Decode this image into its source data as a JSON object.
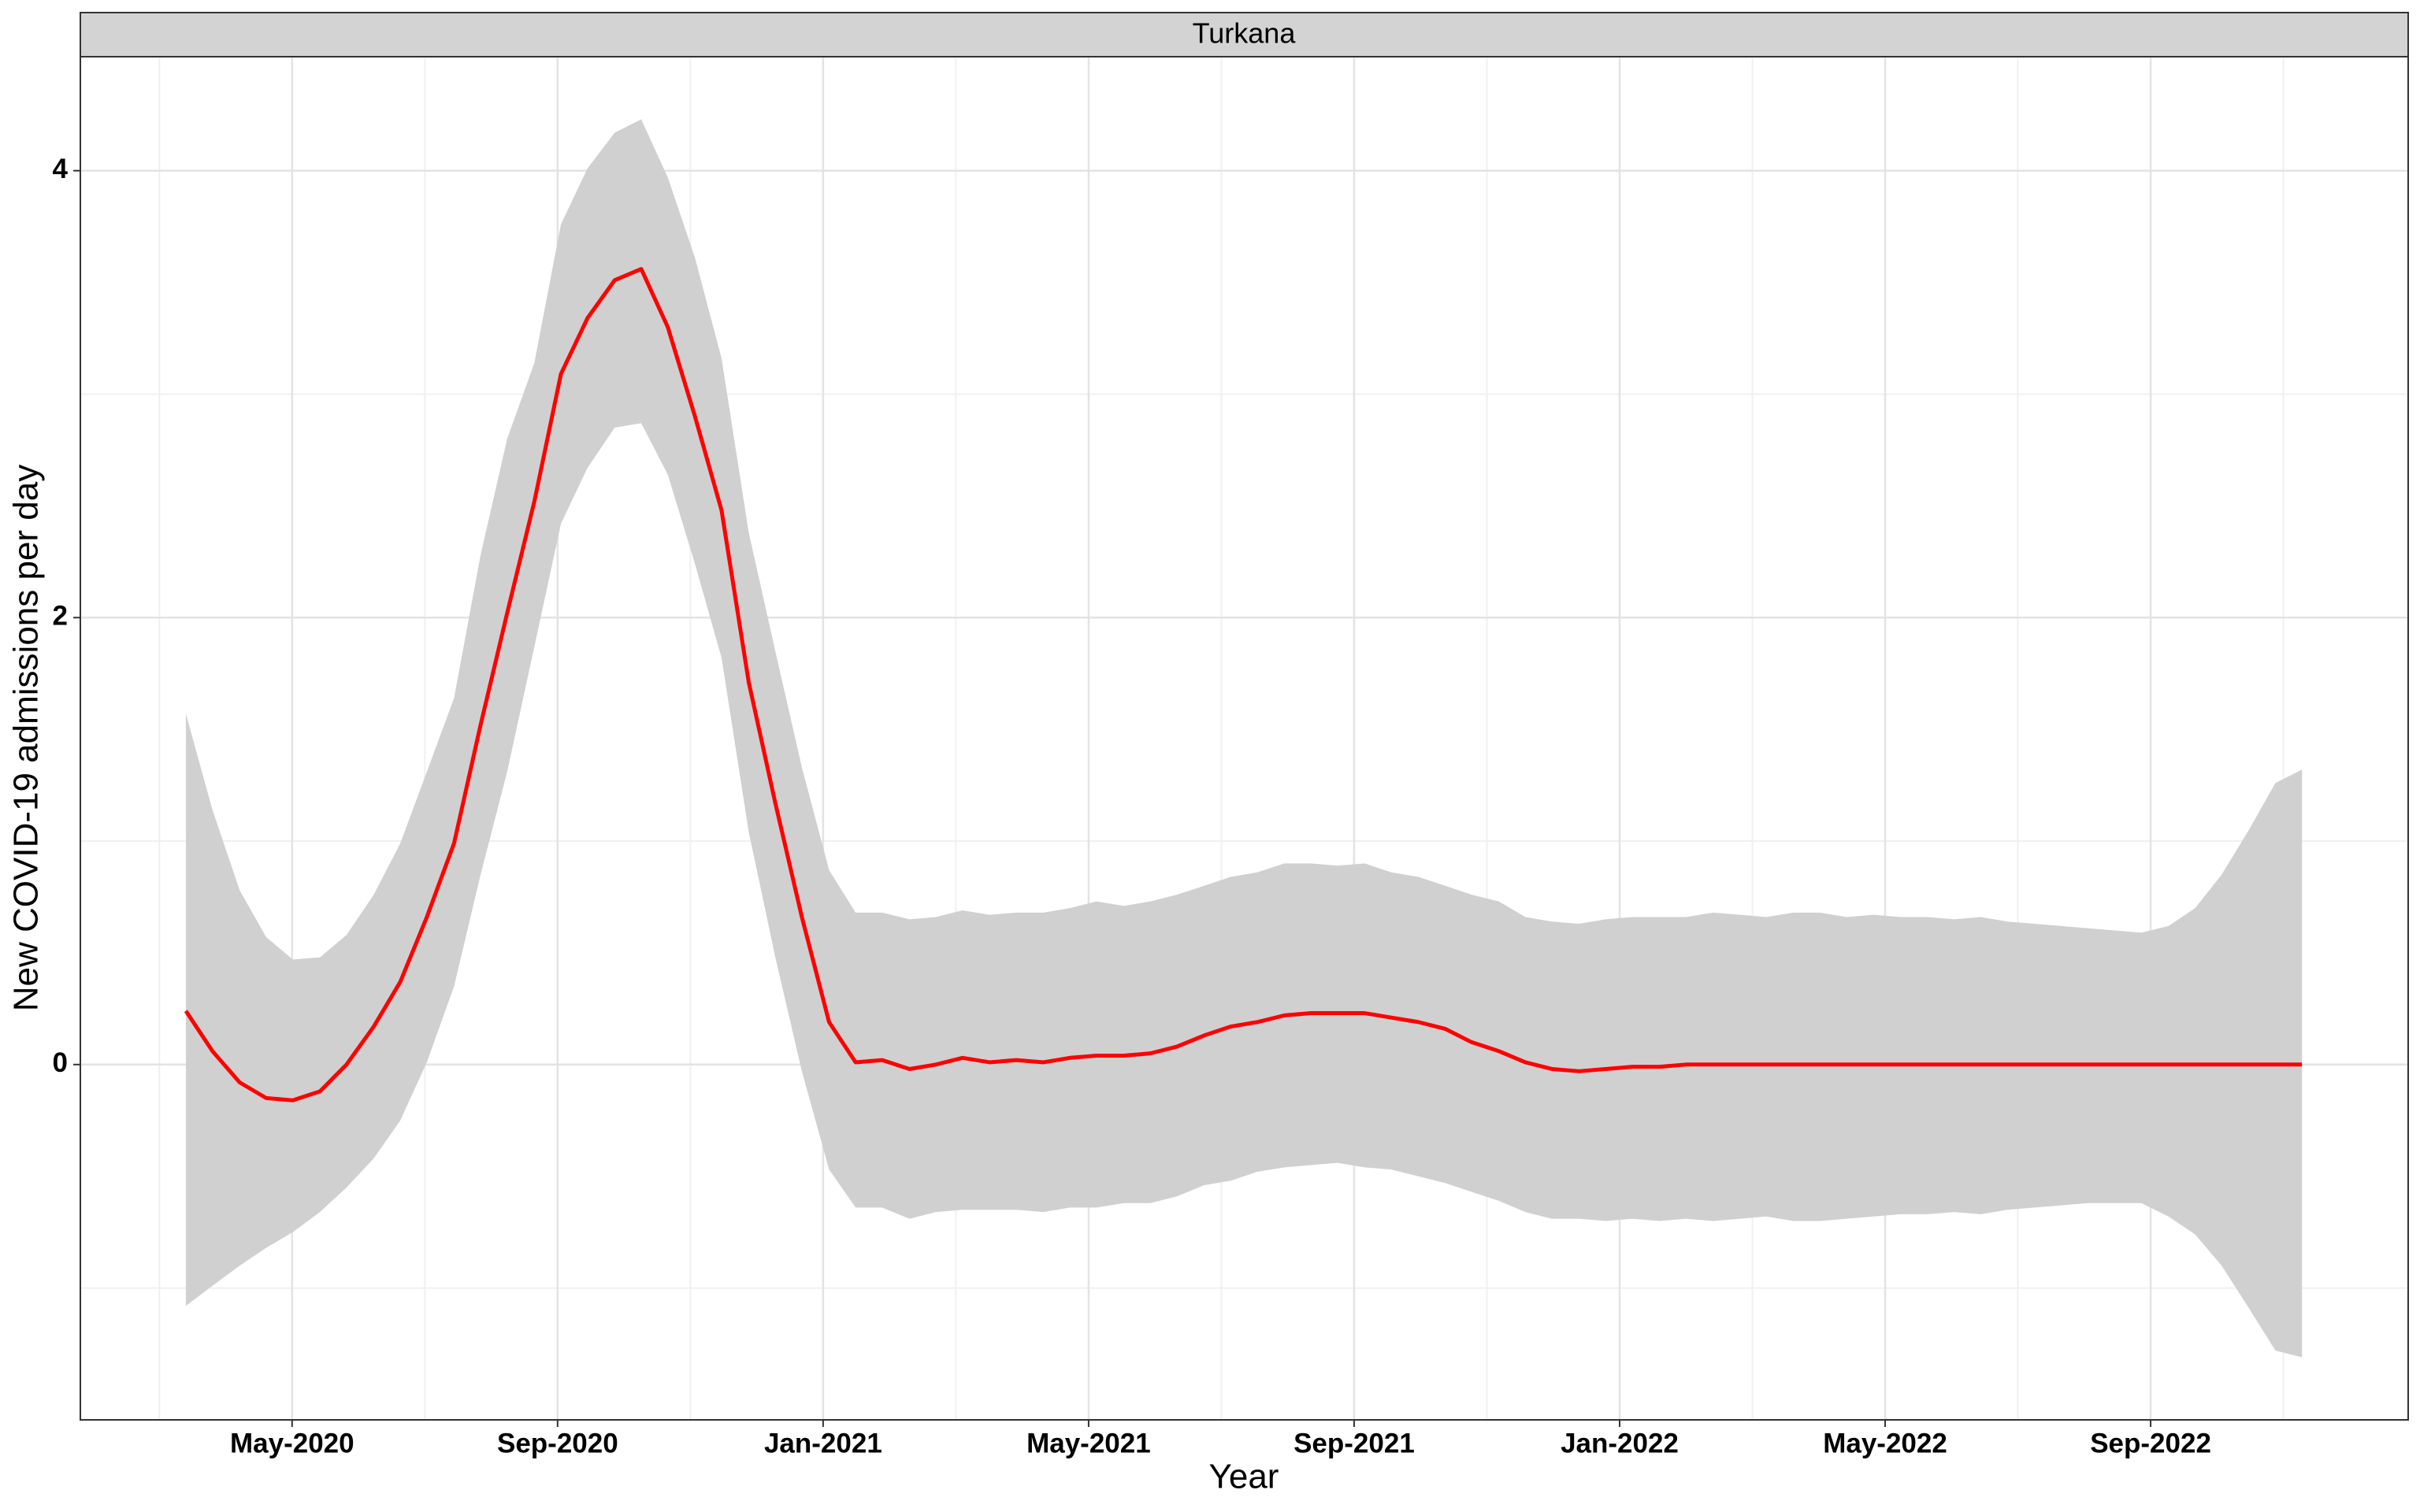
{
  "chart_data": {
    "type": "line",
    "panel": "Turkana",
    "x_label": "Year",
    "y_label": "New COVID-19 admissions per day",
    "x": [
      2.4,
      2.8,
      3.21,
      3.61,
      4.01,
      4.42,
      4.82,
      5.23,
      5.63,
      6.03,
      6.44,
      6.84,
      7.24,
      7.65,
      8.05,
      8.45,
      8.86,
      9.26,
      9.66,
      10.07,
      10.47,
      10.88,
      11.28,
      11.68,
      12.09,
      12.49,
      12.89,
      13.3,
      13.7,
      14.1,
      14.51,
      14.91,
      15.32,
      15.72,
      16.12,
      16.53,
      16.93,
      17.33,
      17.74,
      18.14,
      18.54,
      18.95,
      19.35,
      19.75,
      20.16,
      20.56,
      20.97,
      21.37,
      21.77,
      22.18,
      22.58,
      22.98,
      23.39,
      23.79,
      24.19,
      24.6,
      25.0,
      25.41,
      25.81,
      26.21,
      26.62,
      27.02,
      27.42,
      27.83,
      28.23,
      28.63,
      29.04,
      29.44,
      29.84,
      30.25,
      30.65,
      31.06,
      31.46,
      31.86,
      32.27,
      32.67,
      33.07,
      33.48,
      33.88,
      34.28
    ],
    "values": [
      0.24,
      0.06,
      -0.08,
      -0.15,
      -0.16,
      -0.12,
      0,
      0.17,
      0.37,
      0.66,
      0.99,
      1.52,
      2.02,
      2.52,
      3.09,
      3.34,
      3.51,
      3.56,
      3.3,
      2.9,
      2.48,
      1.71,
      1.17,
      0.66,
      0.19,
      0.01,
      0.02,
      -0.02,
      0,
      0.03,
      0.01,
      0.02,
      0.01,
      0.03,
      0.04,
      0.04,
      0.05,
      0.08,
      0.13,
      0.17,
      0.19,
      0.22,
      0.23,
      0.23,
      0.23,
      0.21,
      0.19,
      0.16,
      0.1,
      0.06,
      0.01,
      -0.02,
      -0.03,
      -0.02,
      -0.01,
      -0.01,
      0,
      0,
      0,
      0,
      0,
      0,
      0,
      0,
      0,
      0,
      0,
      0,
      0,
      0,
      0,
      0,
      0,
      0,
      0,
      0,
      0,
      0,
      0,
      0
    ],
    "upper": [
      1.57,
      1.14,
      0.78,
      0.57,
      0.47,
      0.48,
      0.58,
      0.76,
      0.99,
      1.31,
      1.64,
      2.28,
      2.8,
      3.14,
      3.76,
      4.01,
      4.17,
      4.23,
      3.97,
      3.61,
      3.16,
      2.38,
      1.85,
      1.33,
      0.87,
      0.68,
      0.68,
      0.65,
      0.66,
      0.69,
      0.67,
      0.68,
      0.68,
      0.7,
      0.73,
      0.71,
      0.73,
      0.76,
      0.8,
      0.84,
      0.86,
      0.9,
      0.9,
      0.89,
      0.9,
      0.86,
      0.84,
      0.8,
      0.76,
      0.73,
      0.66,
      0.64,
      0.63,
      0.65,
      0.66,
      0.66,
      0.66,
      0.68,
      0.67,
      0.66,
      0.68,
      0.68,
      0.66,
      0.67,
      0.66,
      0.66,
      0.65,
      0.66,
      0.64,
      0.63,
      0.62,
      0.61,
      0.6,
      0.59,
      0.62,
      0.7,
      0.85,
      1.05,
      1.26,
      1.32
    ],
    "lower": [
      -1.08,
      -0.99,
      -0.9,
      -0.82,
      -0.75,
      -0.66,
      -0.55,
      -0.42,
      -0.25,
      0.01,
      0.35,
      0.85,
      1.31,
      1.87,
      2.42,
      2.67,
      2.85,
      2.87,
      2.64,
      2.24,
      1.82,
      1.04,
      0.48,
      -0.03,
      -0.47,
      -0.64,
      -0.64,
      -0.69,
      -0.66,
      -0.65,
      -0.65,
      -0.65,
      -0.66,
      -0.64,
      -0.64,
      -0.62,
      -0.62,
      -0.59,
      -0.54,
      -0.52,
      -0.48,
      -0.46,
      -0.45,
      -0.44,
      -0.46,
      -0.47,
      -0.5,
      -0.53,
      -0.57,
      -0.61,
      -0.66,
      -0.69,
      -0.69,
      -0.7,
      -0.69,
      -0.7,
      -0.69,
      -0.7,
      -0.69,
      -0.68,
      -0.7,
      -0.7,
      -0.69,
      -0.68,
      -0.67,
      -0.67,
      -0.66,
      -0.67,
      -0.65,
      -0.64,
      -0.63,
      -0.62,
      -0.62,
      -0.62,
      -0.68,
      -0.76,
      -0.9,
      -1.09,
      -1.28,
      -1.31
    ],
    "color": "#ff0000",
    "band_color": "#d0d0d0",
    "xlim": [
      0.81,
      35.88
    ],
    "xticks": [
      {
        "value": 4,
        "label": "May-2020"
      },
      {
        "value": 8,
        "label": "Sep-2020"
      },
      {
        "value": 12,
        "label": "Jan-2021"
      },
      {
        "value": 16,
        "label": "May-2021"
      },
      {
        "value": 20,
        "label": "Sep-2021"
      },
      {
        "value": 24,
        "label": "Jan-2022"
      },
      {
        "value": 28,
        "label": "May-2022"
      },
      {
        "value": 32,
        "label": "Sep-2022"
      }
    ],
    "xminor": [
      2,
      6,
      10,
      14,
      18,
      22,
      26,
      30,
      34
    ],
    "ylim": [
      -1.59,
      4.51
    ],
    "yticks": [
      0,
      2,
      4
    ],
    "yminor": [
      -1,
      1,
      3
    ],
    "grid": true
  }
}
